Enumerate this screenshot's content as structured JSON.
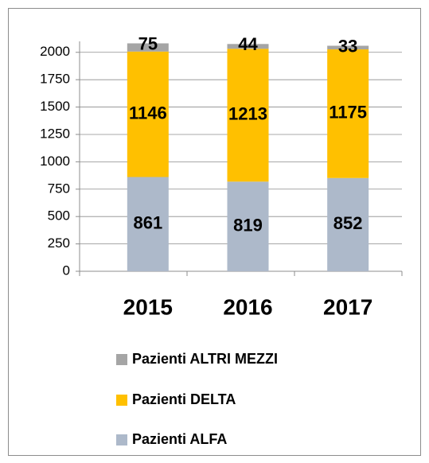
{
  "chart_data": {
    "type": "stacked_bar",
    "categories": [
      "2015",
      "2016",
      "2017"
    ],
    "series": [
      {
        "name": "Pazienti ALFA",
        "color": "#adb9ca",
        "values": [
          861,
          819,
          852
        ]
      },
      {
        "name": "Pazienti DELTA",
        "color": "#ffc000",
        "values": [
          1146,
          1213,
          1175
        ]
      },
      {
        "name": "Pazienti ALTRI MEZZI",
        "color": "#a5a5a5",
        "values": [
          75,
          44,
          33
        ]
      }
    ],
    "ylim": [
      0,
      2100
    ],
    "yticks": [
      0,
      250,
      500,
      750,
      1000,
      1250,
      1500,
      1750,
      2000
    ],
    "grid": true
  }
}
